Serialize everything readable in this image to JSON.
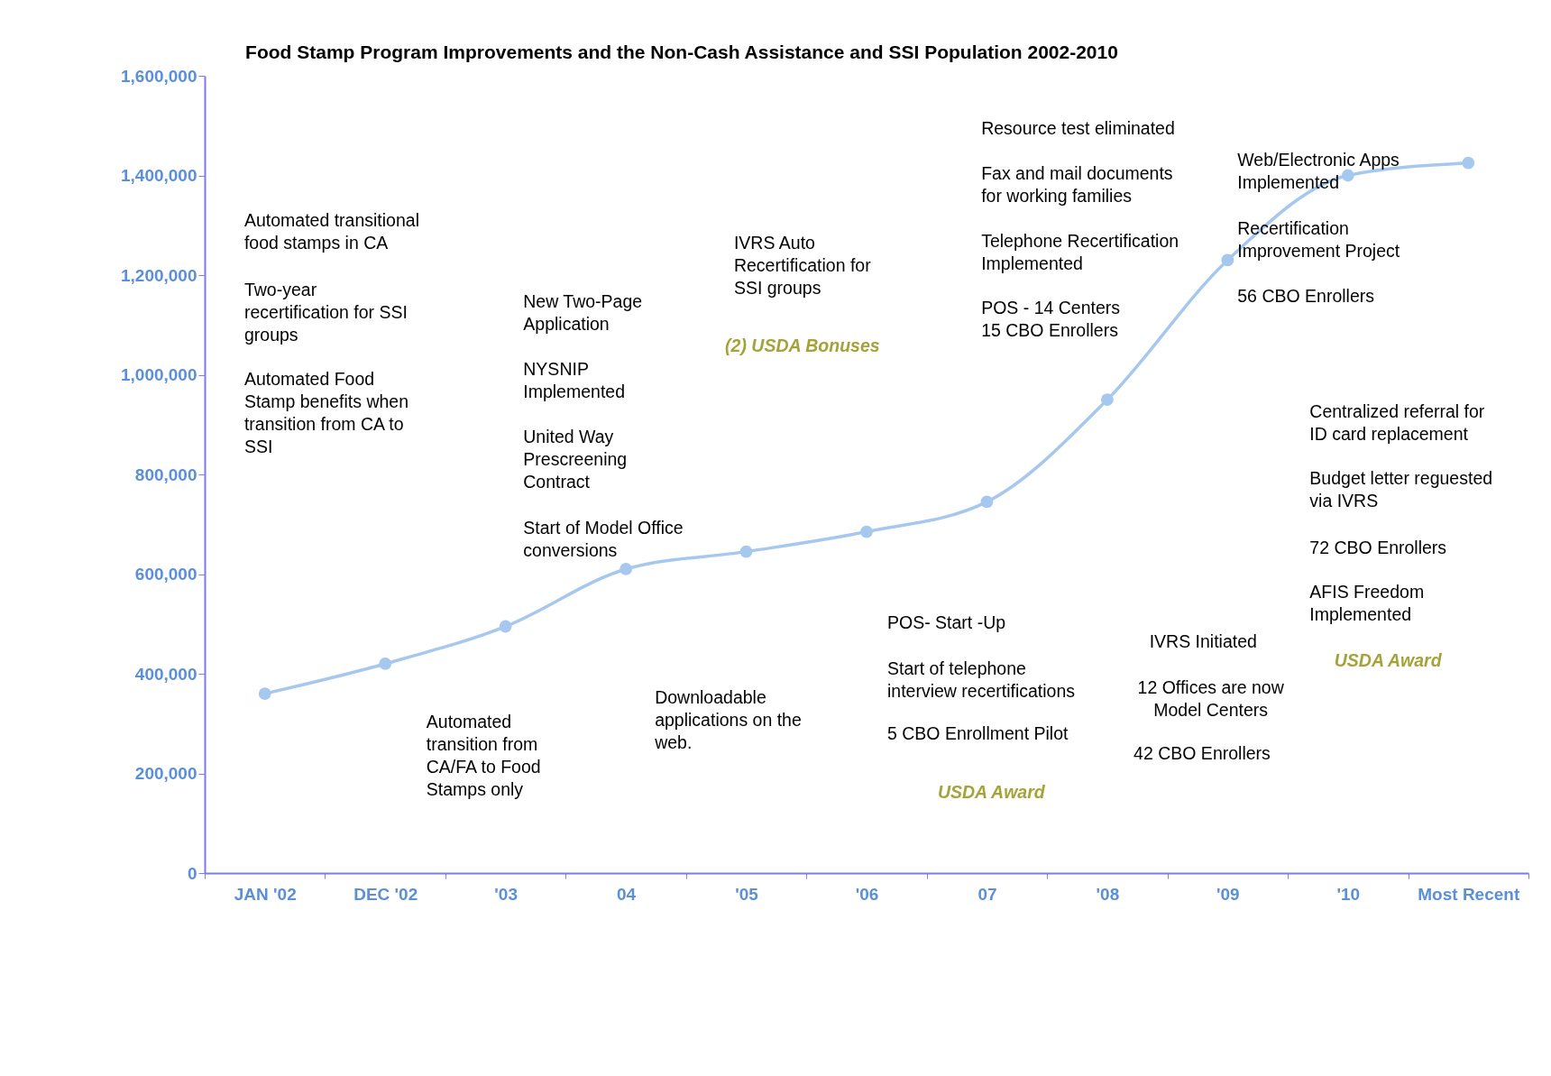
{
  "chart_data": {
    "type": "line",
    "title": "Food Stamp Program Improvements and the Non-Cash Assistance and SSI Population  2002-2010",
    "categories": [
      "JAN '02",
      "DEC '02",
      "'03",
      "04",
      "'05",
      "'06",
      "07",
      "'08",
      "'09",
      "'10",
      "Most Recent"
    ],
    "series": [
      {
        "color": "#a6c8ef",
        "values": [
          360000,
          420000,
          495000,
          610000,
          645000,
          685000,
          745000,
          950000,
          1230000,
          1400000,
          1425000
        ]
      }
    ],
    "ylim": [
      0,
      1600000
    ],
    "yticks": [
      {
        "value": 0,
        "label": "0"
      },
      {
        "value": 200000,
        "label": "200,000"
      },
      {
        "value": 400000,
        "label": "400,000"
      },
      {
        "value": 600000,
        "label": "600,000"
      },
      {
        "value": 800000,
        "label": "800,000"
      },
      {
        "value": 1000000,
        "label": "1,000,000"
      },
      {
        "value": 1200000,
        "label": "1,200,000"
      },
      {
        "value": 1400000,
        "label": "1,400,000"
      },
      {
        "value": 1600000,
        "label": "1,600,000"
      }
    ],
    "grid": false,
    "marker": "circle",
    "line_style": "solid",
    "annotations": [
      "Automated transitional\nfood stamps in CA",
      "Two-year\nrecertification for SSI\ngroups",
      "Automated Food\nStamp benefits  when\ntransition from CA to\nSSI",
      "New Two-Page\nApplication",
      "NYSNIP\nImplemented",
      "United Way\nPrescreening\nContract",
      "Start of  Model Office\nconversions",
      "IVRS  Auto\nRecertification for\nSSI groups",
      "(2) USDA  Bonuses",
      "Resource test eliminated",
      "Fax and mail documents\nfor working families",
      "Telephone Recertification\nImplemented",
      "POS - 14 Centers\n15 CBO Enrollers",
      "Web/Electronic Apps\nImplemented",
      "Recertification\nImprovement Project",
      "56 CBO Enrollers",
      "Centralized referral for\nID card replacement",
      "Budget letter reguested\nvia IVRS",
      "72 CBO Enrollers",
      "AFIS Freedom\nImplemented",
      "USDA  Award",
      "Automated\ntransition from\nCA/FA to Food\nStamps only",
      "Downloadable\napplications on the\nweb.",
      "POS- Start -Up",
      "Start of telephone\ninterview recertifications",
      "5 CBO Enrollment Pilot",
      "USDA Award",
      "IVRS Initiated",
      "12 Offices are now\nModel Centers",
      "42 CBO Enrollers"
    ]
  }
}
